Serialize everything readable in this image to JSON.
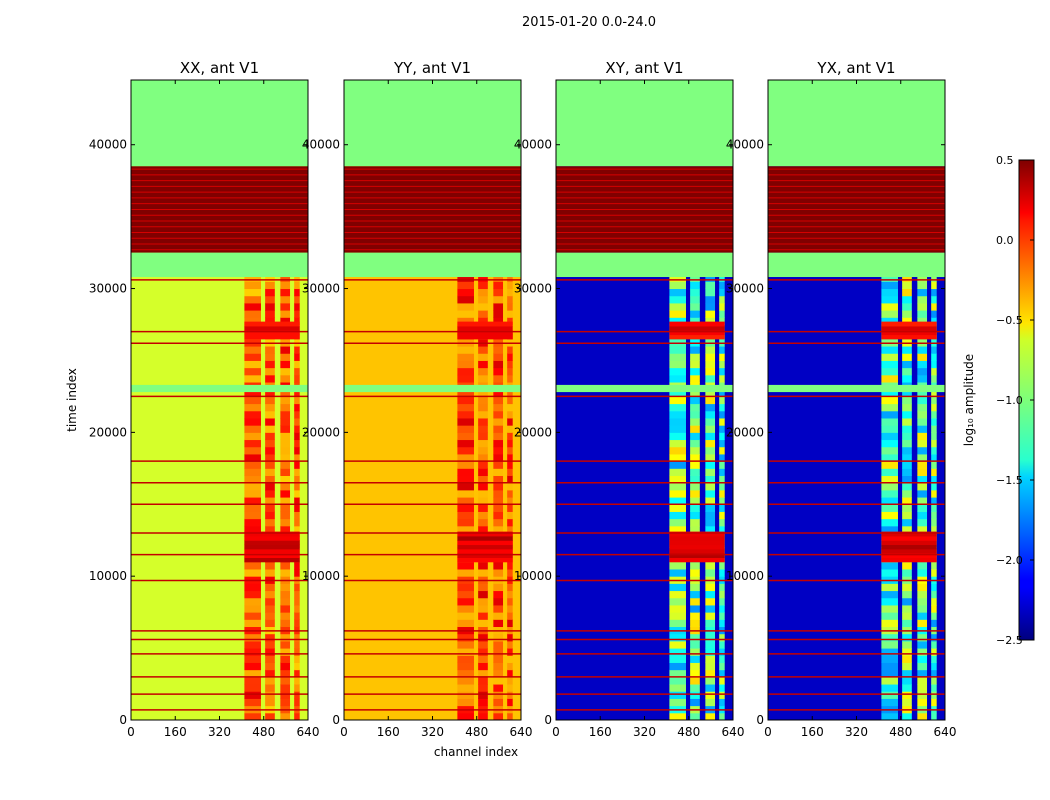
{
  "suptitle": "2015-01-20 0.0-24.0",
  "chart_data": {
    "type": "heatmap",
    "xlabel": "channel index",
    "ylabel": "time index",
    "xlim": [
      0,
      640
    ],
    "ylim": [
      0,
      44500
    ],
    "xticks": [
      0,
      160,
      320,
      480,
      640
    ],
    "yticks": [
      0,
      10000,
      20000,
      30000,
      40000
    ],
    "panels": [
      {
        "title": "XX, ant V1",
        "base_value": -0.75,
        "band_value": -0.15
      },
      {
        "title": "YY, ant V1",
        "base_value": -0.45,
        "band_value": -0.1
      },
      {
        "title": "XY, ant V1",
        "base_value": -2.3,
        "band_value": -1.1
      },
      {
        "title": "YX, ant V1",
        "base_value": -2.3,
        "band_value": -1.1
      }
    ],
    "regions": [
      {
        "label": "flagged block (saturated)",
        "t_start": 32500,
        "t_end": 38500,
        "value": 0.5
      },
      {
        "label": "flagged block (constant)",
        "t_start": 30800,
        "t_end": 32500,
        "value": -1.0
      },
      {
        "label": "flagged block (constant)",
        "t_start": 38500,
        "t_end": 44500,
        "value": -1.0
      },
      {
        "label": "flagged block (constant)",
        "t_start": 22800,
        "t_end": 23300,
        "value": -1.0
      },
      {
        "label": "bright rows",
        "t_start": 11000,
        "t_end": 13000,
        "value": 0.4
      },
      {
        "label": "bright rows",
        "t_start": 26500,
        "t_end": 27500,
        "value": 0.3
      }
    ],
    "rfi_channels": [
      [
        410,
        470
      ],
      [
        485,
        520
      ],
      [
        540,
        575
      ],
      [
        590,
        610
      ]
    ],
    "colorbar": {
      "label": "log₁₀ amplitude",
      "range": [
        -2.5,
        0.5
      ],
      "ticks": [
        "0.5",
        "0.0",
        "−0.5",
        "−1.0",
        "−1.5",
        "−2.0",
        "−2.5"
      ],
      "tick_values": [
        0.5,
        0.0,
        -0.5,
        -1.0,
        -1.5,
        -2.0,
        -2.5
      ],
      "colormap": "jet"
    }
  }
}
